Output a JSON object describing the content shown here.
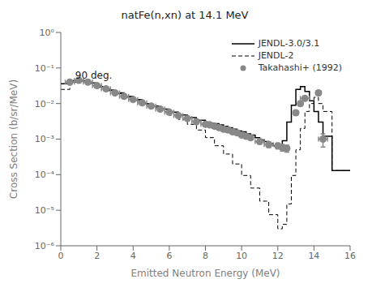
{
  "chart_data": {
    "type": "line",
    "title": "natFe(n,xn) at 14.1 MeV",
    "xlabel": "Emitted Neutron Energy (MeV)",
    "ylabel": "Cross Section (b/sr/MeV)",
    "log": "y",
    "grid": false,
    "legend": "upper right",
    "xlim": [
      0,
      16
    ],
    "xticks": [
      0,
      2,
      4,
      6,
      8,
      10,
      12,
      14,
      16
    ],
    "ylim": [
      1e-06,
      1
    ],
    "yticks": [
      {
        "value": 1e-06,
        "label": "10⁻⁶"
      },
      {
        "value": 1e-05,
        "label": "10⁻⁵"
      },
      {
        "value": 0.0001,
        "label": "10⁻⁴"
      },
      {
        "value": 0.001,
        "label": "10⁻³"
      },
      {
        "value": 0.01,
        "label": "10⁻²"
      },
      {
        "value": 0.1,
        "label": "10⁻¹"
      },
      {
        "value": 1,
        "label": "10⁰"
      }
    ],
    "annotations": [
      {
        "text": "90 deg.",
        "x": 0.8,
        "y": 0.08
      }
    ],
    "series": [
      {
        "name": "JENDL-3.0/3.1",
        "type": "step",
        "color": "#000000",
        "line_style": "solid",
        "bins": [
          0.0,
          0.5,
          1.0,
          1.5,
          2.0,
          2.5,
          3.0,
          3.5,
          4.0,
          4.5,
          5.0,
          5.5,
          6.0,
          6.5,
          7.0,
          7.5,
          8.0,
          8.25,
          8.5,
          8.75,
          9.0,
          9.25,
          9.5,
          9.75,
          10.0,
          10.25,
          10.5,
          10.75,
          11.0,
          11.25,
          11.5,
          11.75,
          12.0,
          12.25,
          12.5,
          12.75,
          13.0,
          13.25,
          13.5,
          13.75,
          14.0,
          14.25,
          14.5,
          15.0,
          16.0
        ],
        "values": [
          0.036,
          0.044,
          0.044,
          0.038,
          0.03,
          0.024,
          0.02,
          0.016,
          0.013,
          0.01,
          0.0085,
          0.007,
          0.0057,
          0.0048,
          0.004,
          0.0034,
          0.003,
          0.0028,
          0.0027,
          0.0025,
          0.0023,
          0.0021,
          0.0019,
          0.0017,
          0.0016,
          0.0014,
          0.0013,
          0.0011,
          0.00095,
          0.00085,
          0.00075,
          0.00065,
          0.0006,
          0.0009,
          0.003,
          0.009,
          0.025,
          0.03,
          0.022,
          0.012,
          0.006,
          0.003,
          0.0012,
          0.00013
        ]
      },
      {
        "name": "JENDL-2",
        "type": "step",
        "color": "#000000",
        "line_style": "dashed",
        "bins": [
          0.0,
          0.5,
          1.0,
          1.5,
          2.0,
          2.5,
          3.0,
          3.5,
          4.0,
          4.5,
          5.0,
          5.5,
          6.0,
          6.5,
          7.0,
          7.5,
          8.0,
          8.5,
          9.0,
          9.5,
          10.0,
          10.5,
          11.0,
          11.5,
          12.0,
          12.25,
          12.5,
          12.75,
          13.0,
          13.25,
          13.5,
          13.75,
          14.0,
          14.25,
          14.5,
          15.0,
          16.0
        ],
        "values": [
          0.025,
          0.04,
          0.043,
          0.037,
          0.029,
          0.023,
          0.019,
          0.015,
          0.012,
          0.0096,
          0.0077,
          0.006,
          0.0047,
          0.0036,
          0.0026,
          0.0018,
          0.0011,
          0.00065,
          0.00038,
          0.0002,
          9.5e-05,
          4.2e-05,
          1.8e-05,
          7.5e-06,
          3e-06,
          4e-06,
          1.5e-05,
          9.5e-05,
          0.0005,
          0.002,
          0.006,
          0.01,
          0.015,
          0.01,
          0.006,
          0.00013
        ]
      },
      {
        "name": "Takahashi+ (1992)",
        "type": "scatter",
        "color": "#888888",
        "marker": "circle",
        "x": [
          0.5,
          1.0,
          1.5,
          2.0,
          2.5,
          3.0,
          3.5,
          4.0,
          4.5,
          5.0,
          5.5,
          6.0,
          6.5,
          7.0,
          7.5,
          8.0,
          8.25,
          8.5,
          8.75,
          9.0,
          9.25,
          9.5,
          9.75,
          10.0,
          10.25,
          10.5,
          11.0,
          11.5,
          12.0,
          12.25,
          12.5,
          13.0,
          13.25,
          13.5,
          14.25,
          14.5
        ],
        "values": [
          0.04,
          0.045,
          0.04,
          0.032,
          0.026,
          0.02,
          0.016,
          0.013,
          0.0105,
          0.0085,
          0.007,
          0.0057,
          0.0046,
          0.0038,
          0.0031,
          0.0026,
          0.0025,
          0.0023,
          0.0021,
          0.0019,
          0.0018,
          0.0016,
          0.0015,
          0.0013,
          0.0012,
          0.0011,
          0.00085,
          0.0007,
          0.00065,
          0.00058,
          0.00055,
          0.0055,
          0.01,
          0.014,
          0.02,
          0.001
        ],
        "yerr_lo": [
          0.003,
          0.003,
          0.003,
          0.002,
          0.002,
          0.0015,
          0.0012,
          0.001,
          0.0009,
          0.0007,
          0.0006,
          0.0005,
          0.0004,
          0.0003,
          0.0003,
          0.0002,
          0.0002,
          0.0002,
          0.0002,
          0.00015,
          0.00015,
          0.00015,
          0.00015,
          0.00013,
          0.00013,
          0.00012,
          0.00012,
          0.00012,
          0.00012,
          0.00012,
          0.00012,
          0.0008,
          0.0015,
          0.002,
          0.003,
          0.0004
        ],
        "yerr_hi": [
          0.003,
          0.003,
          0.003,
          0.002,
          0.002,
          0.0015,
          0.0012,
          0.001,
          0.0009,
          0.0007,
          0.0006,
          0.0005,
          0.0004,
          0.0003,
          0.0003,
          0.0002,
          0.0002,
          0.0002,
          0.0002,
          0.00015,
          0.00015,
          0.00015,
          0.00015,
          0.00013,
          0.00013,
          0.00012,
          0.00012,
          0.00012,
          0.00012,
          0.00012,
          0.00012,
          0.0008,
          0.0015,
          0.002,
          0.003,
          0.0004
        ],
        "xerr": [
          0.25,
          0.25,
          0.25,
          0.25,
          0.25,
          0.25,
          0.25,
          0.25,
          0.25,
          0.25,
          0.25,
          0.25,
          0.25,
          0.25,
          0.25,
          0.25,
          0.125,
          0.125,
          0.125,
          0.125,
          0.125,
          0.125,
          0.125,
          0.125,
          0.125,
          0.125,
          0.25,
          0.25,
          0.125,
          0.125,
          0.125,
          0.125,
          0.125,
          0.25,
          0.125,
          0.25
        ]
      }
    ]
  }
}
